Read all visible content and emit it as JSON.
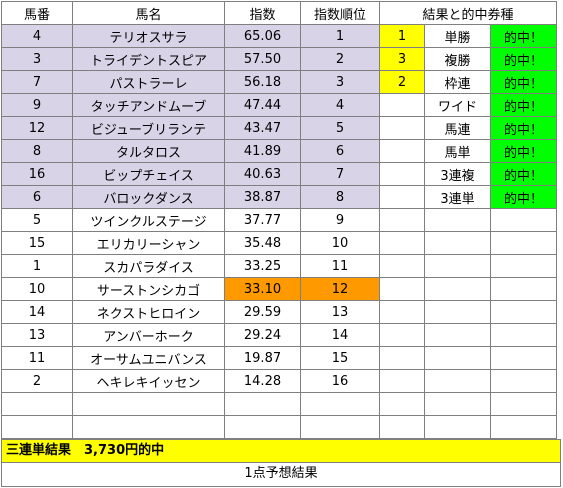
{
  "headers": {
    "umaban": "馬番",
    "bamei": "馬名",
    "shisu": "指数",
    "junni": "指数順位",
    "kekka": "結果と的中券種"
  },
  "rows": [
    {
      "umaban": "4",
      "bamei": "テリオスサラ",
      "shisu": "65.06",
      "junni": "1"
    },
    {
      "umaban": "3",
      "bamei": "トライデントスピア",
      "shisu": "57.50",
      "junni": "2"
    },
    {
      "umaban": "7",
      "bamei": "パストラーレ",
      "shisu": "56.18",
      "junni": "3"
    },
    {
      "umaban": "9",
      "bamei": "タッチアンドムーブ",
      "shisu": "47.44",
      "junni": "4"
    },
    {
      "umaban": "12",
      "bamei": "ビジューブリランテ",
      "shisu": "43.47",
      "junni": "5"
    },
    {
      "umaban": "8",
      "bamei": "タルタロス",
      "shisu": "41.89",
      "junni": "6"
    },
    {
      "umaban": "16",
      "bamei": "ビップチェイス",
      "shisu": "40.63",
      "junni": "7"
    },
    {
      "umaban": "6",
      "bamei": "バロックダンス",
      "shisu": "38.87",
      "junni": "8"
    },
    {
      "umaban": "5",
      "bamei": "ツインクルステージ",
      "shisu": "37.77",
      "junni": "9"
    },
    {
      "umaban": "15",
      "bamei": "エリカリーシャン",
      "shisu": "35.48",
      "junni": "10"
    },
    {
      "umaban": "1",
      "bamei": "スカパラダイス",
      "shisu": "33.25",
      "junni": "11"
    },
    {
      "umaban": "10",
      "bamei": "サーストンシカゴ",
      "shisu": "33.10",
      "junni": "12"
    },
    {
      "umaban": "14",
      "bamei": "ネクストヒロイン",
      "shisu": "29.59",
      "junni": "13"
    },
    {
      "umaban": "13",
      "bamei": "アンバーホーク",
      "shisu": "29.24",
      "junni": "14"
    },
    {
      "umaban": "11",
      "bamei": "オーサムユニバンス",
      "shisu": "19.87",
      "junni": "15"
    },
    {
      "umaban": "2",
      "bamei": "ヘキレキイッセン",
      "shisu": "14.28",
      "junni": "16"
    }
  ],
  "result": {
    "placings": [
      "1",
      "3",
      "2"
    ],
    "bet_types": [
      "単勝",
      "複勝",
      "枠連",
      "ワイド",
      "馬連",
      "馬単",
      "3連複",
      "3連単"
    ],
    "hit_label": "的中！"
  },
  "banner": "三連単結果　3,730円的中",
  "footer": "1点予想結果",
  "colors": {
    "highlight": "#d9d3e8",
    "orange": "#ff9900",
    "yellow": "#ffff00",
    "green": "#00ff00"
  }
}
